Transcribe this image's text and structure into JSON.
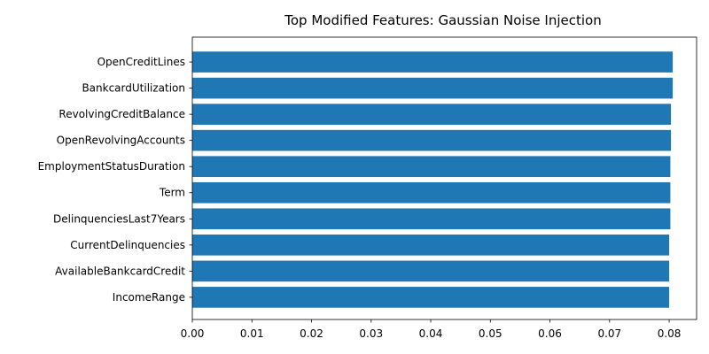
{
  "chart_data": {
    "type": "bar",
    "orientation": "horizontal",
    "title": "Top Modified Features: Gaussian Noise Injection",
    "xlabel": "",
    "ylabel": "",
    "categories": [
      "OpenCreditLines",
      "BankcardUtilization",
      "RevolvingCreditBalance",
      "OpenRevolvingAccounts",
      "EmploymentStatusDuration",
      "Term",
      "DelinquenciesLast7Years",
      "CurrentDelinquencies",
      "AvailableBankcardCredit",
      "IncomeRange"
    ],
    "values": [
      0.0806,
      0.0806,
      0.0803,
      0.0803,
      0.0802,
      0.0802,
      0.0802,
      0.08,
      0.08,
      0.08
    ],
    "xlim": [
      0,
      0.0846
    ],
    "xticks": [
      0.0,
      0.01,
      0.02,
      0.03,
      0.04,
      0.05,
      0.06,
      0.07,
      0.08
    ],
    "xtick_labels": [
      "0.00",
      "0.01",
      "0.02",
      "0.03",
      "0.04",
      "0.05",
      "0.06",
      "0.07",
      "0.08"
    ],
    "bar_color": "#1f77b4",
    "grid": false,
    "legend": "none"
  }
}
